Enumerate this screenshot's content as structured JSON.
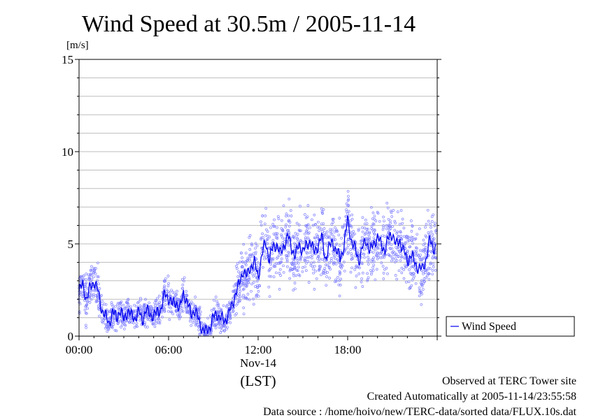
{
  "chart_data": {
    "type": "scatter",
    "title": "Wind Speed at 30.5m / 2005-11-14",
    "ylabel": "[m/s]",
    "xlabel": "(LST)",
    "date_label": "Nov-14",
    "ylim": [
      0,
      15
    ],
    "xlim_hours": [
      0,
      24
    ],
    "y_ticks": [
      0,
      5,
      10,
      15
    ],
    "y_gridlines": [
      1,
      2,
      3,
      4,
      5,
      6,
      7,
      8,
      9,
      10,
      11,
      12,
      13,
      14,
      15
    ],
    "x_ticks": [
      {
        "hour": 0,
        "label": "00:00"
      },
      {
        "hour": 6,
        "label": "06:00"
      },
      {
        "hour": 12,
        "label": "12:00"
      },
      {
        "hour": 18,
        "label": "18:00"
      }
    ],
    "grid": true,
    "legend_position": "right",
    "series": [
      {
        "name": "Wind Speed",
        "color": "#0000ee",
        "scatter_color": "#8080ff",
        "x_hours": [
          0.0,
          0.25,
          0.5,
          0.75,
          1.0,
          1.25,
          1.5,
          1.75,
          2.0,
          2.25,
          2.5,
          2.75,
          3.0,
          3.25,
          3.5,
          3.75,
          4.0,
          4.25,
          4.5,
          4.75,
          5.0,
          5.25,
          5.5,
          5.75,
          6.0,
          6.25,
          6.5,
          6.75,
          7.0,
          7.25,
          7.5,
          7.75,
          8.0,
          8.25,
          8.5,
          8.75,
          9.0,
          9.25,
          9.5,
          9.75,
          10.0,
          10.25,
          10.5,
          10.75,
          11.0,
          11.25,
          11.5,
          11.75,
          12.0,
          12.25,
          12.5,
          12.75,
          13.0,
          13.25,
          13.5,
          13.75,
          14.0,
          14.25,
          14.5,
          14.75,
          15.0,
          15.25,
          15.5,
          15.75,
          16.0,
          16.25,
          16.5,
          16.75,
          17.0,
          17.25,
          17.5,
          17.75,
          18.0,
          18.25,
          18.5,
          18.75,
          19.0,
          19.25,
          19.5,
          19.75,
          20.0,
          20.25,
          20.5,
          20.75,
          21.0,
          21.25,
          21.5,
          21.75,
          22.0,
          22.25,
          22.5,
          22.75,
          23.0,
          23.25,
          23.5,
          23.75
        ],
        "values": [
          2.4,
          2.8,
          2.0,
          2.6,
          3.0,
          2.5,
          1.5,
          1.1,
          0.7,
          1.3,
          1.0,
          1.4,
          0.9,
          1.4,
          1.1,
          1.0,
          1.3,
          0.9,
          1.4,
          1.2,
          1.1,
          1.3,
          1.5,
          2.3,
          2.1,
          1.7,
          1.9,
          1.4,
          2.4,
          1.8,
          1.2,
          1.4,
          0.9,
          0.4,
          0.2,
          0.5,
          1.0,
          1.2,
          1.0,
          0.8,
          1.2,
          1.6,
          2.4,
          2.8,
          3.6,
          3.2,
          3.8,
          4.0,
          3.2,
          4.4,
          5.1,
          4.2,
          4.8,
          5.0,
          4.4,
          5.0,
          5.4,
          4.8,
          4.3,
          5.0,
          4.6,
          4.9,
          5.2,
          4.5,
          4.9,
          5.4,
          4.2,
          4.8,
          5.1,
          4.6,
          4.2,
          4.9,
          6.3,
          5.2,
          4.7,
          4.1,
          4.8,
          5.2,
          4.6,
          5.0,
          5.4,
          4.9,
          4.7,
          5.3,
          5.6,
          4.9,
          5.2,
          4.6,
          4.1,
          4.4,
          4.0,
          3.7,
          3.6,
          4.2,
          5.2,
          4.8
        ]
      }
    ]
  },
  "footer": {
    "line1": "Observed at TERC Tower site",
    "line2": "Created Automatically at 2005-11-14/23:55:58",
    "line3": "Data source : /home/hoivo/new/TERC-data/sorted  data/FLUX.10s.dat"
  }
}
